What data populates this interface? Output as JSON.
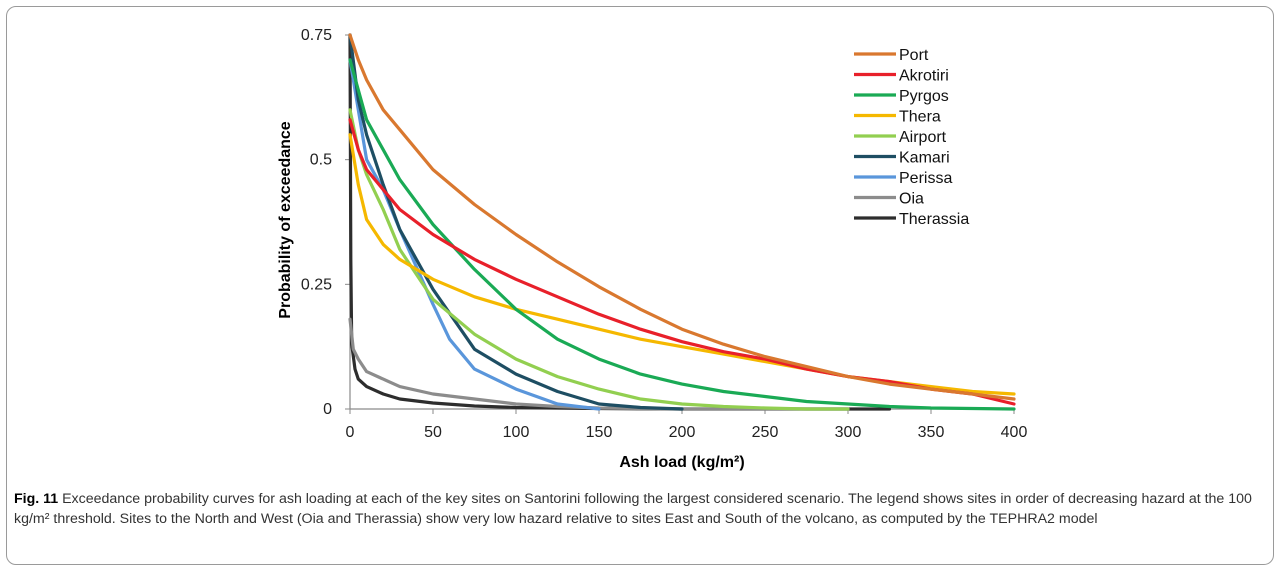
{
  "chart_data": {
    "type": "line",
    "xlabel": "Ash load (kg/m²)",
    "ylabel": "Probability of exceedance",
    "xlim": [
      0,
      400
    ],
    "ylim": [
      0,
      0.75
    ],
    "x_ticks": [
      "0",
      "50",
      "100",
      "150",
      "200",
      "250",
      "300",
      "350",
      "400"
    ],
    "y_ticks": [
      "0",
      "0.25",
      "0.5",
      "0.75"
    ],
    "grid": false,
    "legend_position": "top-right",
    "series": [
      {
        "name": "Port",
        "color": "#d9782f",
        "points": [
          [
            0,
            0.75
          ],
          [
            5,
            0.7
          ],
          [
            10,
            0.66
          ],
          [
            20,
            0.6
          ],
          [
            30,
            0.56
          ],
          [
            50,
            0.48
          ],
          [
            75,
            0.41
          ],
          [
            100,
            0.35
          ],
          [
            125,
            0.295
          ],
          [
            150,
            0.245
          ],
          [
            175,
            0.2
          ],
          [
            200,
            0.16
          ],
          [
            225,
            0.13
          ],
          [
            250,
            0.105
          ],
          [
            275,
            0.085
          ],
          [
            300,
            0.065
          ],
          [
            325,
            0.05
          ],
          [
            350,
            0.04
          ],
          [
            375,
            0.03
          ],
          [
            400,
            0.02
          ]
        ]
      },
      {
        "name": "Akrotiri",
        "color": "#e8202a",
        "points": [
          [
            0,
            0.58
          ],
          [
            5,
            0.52
          ],
          [
            10,
            0.48
          ],
          [
            20,
            0.44
          ],
          [
            30,
            0.4
          ],
          [
            50,
            0.35
          ],
          [
            75,
            0.3
          ],
          [
            100,
            0.26
          ],
          [
            125,
            0.225
          ],
          [
            150,
            0.19
          ],
          [
            175,
            0.16
          ],
          [
            200,
            0.135
          ],
          [
            225,
            0.115
          ],
          [
            250,
            0.1
          ],
          [
            275,
            0.08
          ],
          [
            300,
            0.065
          ],
          [
            325,
            0.055
          ],
          [
            350,
            0.04
          ],
          [
            375,
            0.03
          ],
          [
            400,
            0.01
          ]
        ]
      },
      {
        "name": "Pyrgos",
        "color": "#1aaa55",
        "points": [
          [
            0,
            0.7
          ],
          [
            5,
            0.64
          ],
          [
            10,
            0.58
          ],
          [
            20,
            0.52
          ],
          [
            30,
            0.46
          ],
          [
            50,
            0.37
          ],
          [
            75,
            0.28
          ],
          [
            100,
            0.2
          ],
          [
            125,
            0.14
          ],
          [
            150,
            0.1
          ],
          [
            175,
            0.07
          ],
          [
            200,
            0.05
          ],
          [
            225,
            0.035
          ],
          [
            250,
            0.025
          ],
          [
            275,
            0.015
          ],
          [
            300,
            0.01
          ],
          [
            325,
            0.005
          ],
          [
            350,
            0.002
          ],
          [
            400,
            0.0
          ]
        ]
      },
      {
        "name": "Thera",
        "color": "#f5b800",
        "points": [
          [
            0,
            0.55
          ],
          [
            5,
            0.45
          ],
          [
            10,
            0.38
          ],
          [
            20,
            0.33
          ],
          [
            30,
            0.3
          ],
          [
            50,
            0.26
          ],
          [
            75,
            0.225
          ],
          [
            100,
            0.2
          ],
          [
            125,
            0.18
          ],
          [
            150,
            0.16
          ],
          [
            175,
            0.14
          ],
          [
            200,
            0.125
          ],
          [
            225,
            0.11
          ],
          [
            250,
            0.095
          ],
          [
            275,
            0.08
          ],
          [
            300,
            0.065
          ],
          [
            325,
            0.055
          ],
          [
            350,
            0.045
          ],
          [
            375,
            0.035
          ],
          [
            400,
            0.03
          ]
        ]
      },
      {
        "name": "Airport",
        "color": "#92cf50",
        "points": [
          [
            0,
            0.6
          ],
          [
            5,
            0.52
          ],
          [
            10,
            0.47
          ],
          [
            20,
            0.4
          ],
          [
            30,
            0.32
          ],
          [
            50,
            0.22
          ],
          [
            75,
            0.15
          ],
          [
            100,
            0.1
          ],
          [
            125,
            0.065
          ],
          [
            150,
            0.04
          ],
          [
            175,
            0.02
          ],
          [
            200,
            0.01
          ],
          [
            225,
            0.005
          ],
          [
            250,
            0.002
          ],
          [
            275,
            0.0
          ],
          [
            300,
            0.0
          ]
        ]
      },
      {
        "name": "Kamari",
        "color": "#1e4e63",
        "points": [
          [
            0,
            0.75
          ],
          [
            5,
            0.62
          ],
          [
            10,
            0.55
          ],
          [
            20,
            0.45
          ],
          [
            30,
            0.36
          ],
          [
            50,
            0.24
          ],
          [
            75,
            0.12
          ],
          [
            100,
            0.07
          ],
          [
            125,
            0.035
          ],
          [
            150,
            0.01
          ],
          [
            175,
            0.003
          ],
          [
            200,
            0.0
          ]
        ]
      },
      {
        "name": "Perissa",
        "color": "#5a96db",
        "points": [
          [
            0,
            0.7
          ],
          [
            5,
            0.6
          ],
          [
            10,
            0.5
          ],
          [
            20,
            0.44
          ],
          [
            30,
            0.36
          ],
          [
            50,
            0.21
          ],
          [
            60,
            0.14
          ],
          [
            75,
            0.08
          ],
          [
            100,
            0.04
          ],
          [
            125,
            0.01
          ],
          [
            150,
            0.0
          ]
        ]
      },
      {
        "name": "Oia",
        "color": "#8c8c8c",
        "points": [
          [
            0,
            0.18
          ],
          [
            2,
            0.12
          ],
          [
            5,
            0.1
          ],
          [
            10,
            0.075
          ],
          [
            20,
            0.06
          ],
          [
            30,
            0.045
          ],
          [
            50,
            0.03
          ],
          [
            75,
            0.02
          ],
          [
            100,
            0.01
          ],
          [
            125,
            0.005
          ],
          [
            150,
            0.002
          ],
          [
            200,
            0.0
          ],
          [
            300,
            0.0
          ]
        ]
      },
      {
        "name": "Therassia",
        "color": "#2d2d2d",
        "points": [
          [
            0,
            0.75
          ],
          [
            0.5,
            0.3
          ],
          [
            1,
            0.13
          ],
          [
            3,
            0.08
          ],
          [
            5,
            0.06
          ],
          [
            10,
            0.045
          ],
          [
            20,
            0.03
          ],
          [
            30,
            0.02
          ],
          [
            50,
            0.012
          ],
          [
            75,
            0.006
          ],
          [
            100,
            0.003
          ],
          [
            150,
            0.001
          ],
          [
            200,
            0.0
          ],
          [
            325,
            0.0
          ]
        ]
      }
    ]
  },
  "caption": {
    "label": "Fig. 11",
    "text": " Exceedance probability curves for ash loading at each of the key sites on Santorini following the largest considered scenario. The legend shows sites in order of decreasing hazard at the 100 kg/m² threshold. Sites to the North and West (Oia and Therassia) show very low hazard relative to sites East and South of the volcano, as computed by the TEPHRA2 model"
  }
}
